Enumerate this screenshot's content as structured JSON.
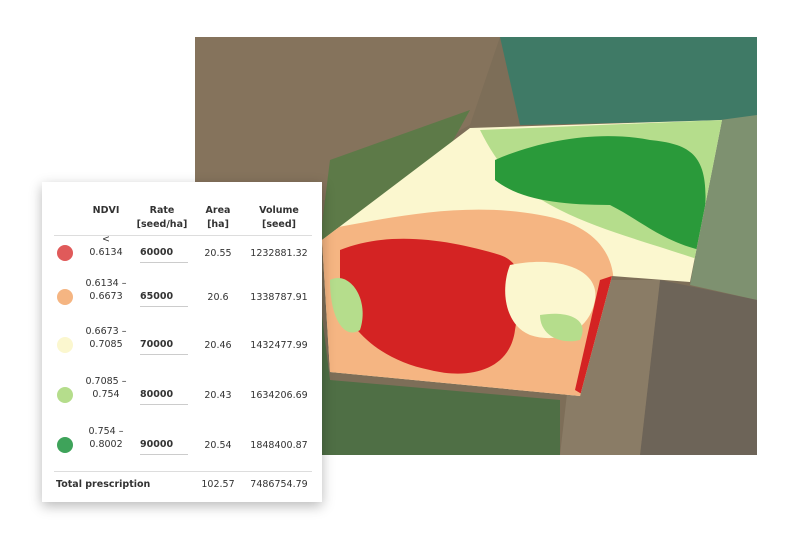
{
  "table": {
    "headers": [
      "NDVI",
      "Rate [seed/ha]",
      "Area [ha]",
      "Volume [seed]"
    ],
    "rows": [
      {
        "ndvi": "< 0.6134",
        "rate": 60000,
        "area": 20.55,
        "volume": 1232881.32,
        "color": "#e05a5a"
      },
      {
        "ndvi": "0.6134 – 0.6673",
        "rate": 65000,
        "area": 20.6,
        "volume": 1338787.91,
        "color": "#f5b582"
      },
      {
        "ndvi": "0.6673 – 0.7085",
        "rate": 70000,
        "area": 20.46,
        "volume": 1432477.99,
        "color": "#fbf7cf"
      },
      {
        "ndvi": "0.7085 – 0.754",
        "rate": 80000,
        "area": 20.43,
        "volume": 1634206.69,
        "color": "#b5dd8c"
      },
      {
        "ndvi": "0.754 – 0.8002",
        "rate": 90000,
        "area": 20.54,
        "volume": 1848400.87,
        "color": "#3ea35a"
      }
    ],
    "total": {
      "label": "Total prescription",
      "area": 102.57,
      "volume": 7486754.79
    }
  }
}
